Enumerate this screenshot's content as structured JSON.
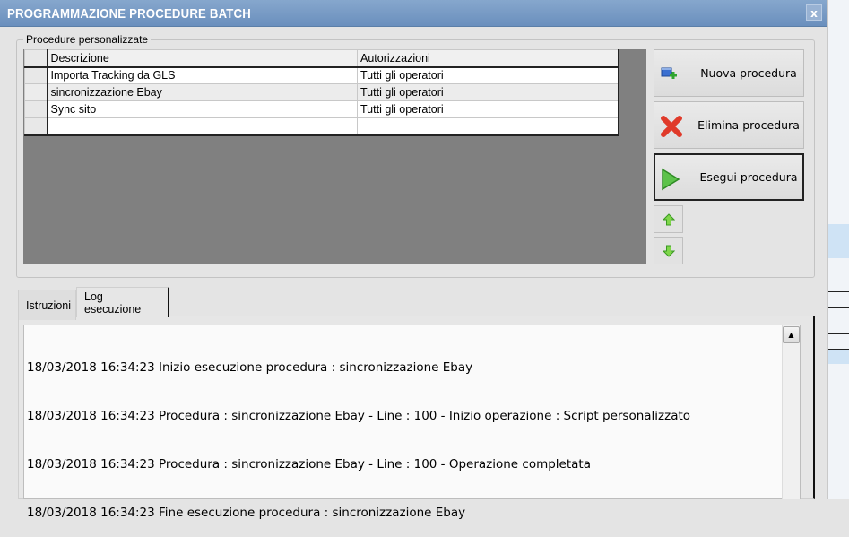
{
  "window": {
    "title": "PROGRAMMAZIONE PROCEDURE BATCH",
    "close_label": "x"
  },
  "group": {
    "label": "Procedure personalizzate"
  },
  "table": {
    "headers": [
      "Descrizione",
      "Autorizzazioni"
    ],
    "rows": [
      {
        "descrizione": "Importa Tracking da GLS",
        "autorizzazioni": "Tutti gli operatori"
      },
      {
        "descrizione": "sincronizzazione Ebay",
        "autorizzazioni": "Tutti gli operatori"
      },
      {
        "descrizione": "Sync sito",
        "autorizzazioni": "Tutti gli operatori"
      },
      {
        "descrizione": "",
        "autorizzazioni": ""
      }
    ]
  },
  "buttons": {
    "new": "Nuova procedura",
    "delete": "Elimina procedura",
    "run": "Esegui procedura"
  },
  "icons": {
    "new": "add-window-icon",
    "delete": "red-x-icon",
    "run": "green-play-icon",
    "up": "green-arrow-up-icon",
    "down": "green-arrow-down-icon"
  },
  "tabs": [
    {
      "label": "Istruzioni"
    },
    {
      "label": "Log esecuzione",
      "active": true
    }
  ],
  "log": {
    "lines": [
      "18/03/2018 16:34:23 Inizio esecuzione procedura : sincronizzazione Ebay",
      "18/03/2018 16:34:23 Procedura : sincronizzazione Ebay - Line : 100 - Inizio operazione : Script personalizzato",
      "18/03/2018 16:34:23 Procedura : sincronizzazione Ebay - Line : 100 - Operazione completata",
      "18/03/2018 16:34:23 Fine esecuzione procedura : sincronizzazione Ebay"
    ]
  }
}
